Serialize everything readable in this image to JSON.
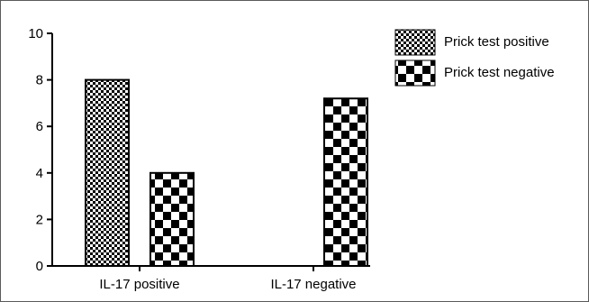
{
  "chart_data": {
    "type": "bar",
    "categories": [
      "IL-17 positive",
      "IL-17 negative"
    ],
    "series": [
      {
        "name": "Prick test positive",
        "values": [
          8.0,
          0
        ],
        "pattern": "fine-checker"
      },
      {
        "name": "Prick test negative",
        "values": [
          4.0,
          7.2
        ],
        "pattern": "coarse-checker"
      }
    ],
    "ylim": [
      0,
      10
    ],
    "yticks": [
      "0",
      "2",
      "4",
      "6",
      "8",
      "10"
    ],
    "xlabel": "",
    "ylabel": "",
    "title": "",
    "grid": false,
    "legend_position": "top-right",
    "colors": {
      "ink": "#000000",
      "paper": "#ffffff"
    }
  }
}
